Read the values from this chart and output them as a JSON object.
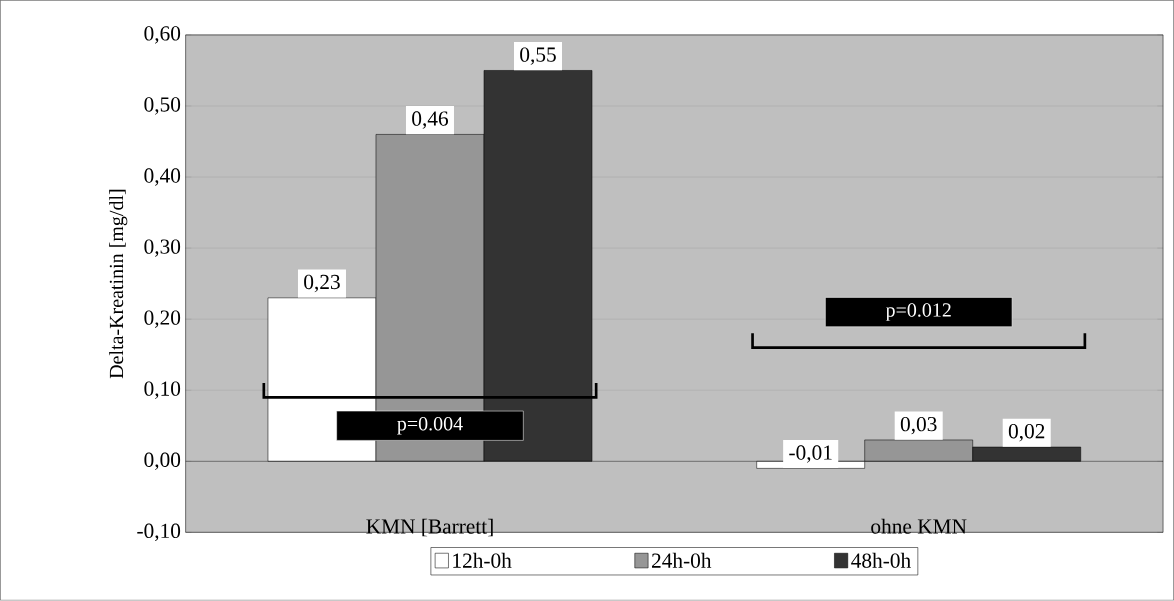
{
  "chart_data": {
    "type": "bar",
    "ylabel": "Delta-Kreatinin [mg/dl]",
    "categories": [
      "KMN [Barrett]",
      "ohne KMN"
    ],
    "series": [
      {
        "name": "12h-0h",
        "color": "#ffffff",
        "values": [
          0.23,
          -0.01
        ],
        "value_labels": [
          "0,23",
          "-0,01"
        ]
      },
      {
        "name": "24h-0h",
        "color": "#969696",
        "values": [
          0.46,
          0.03
        ],
        "value_labels": [
          "0,46",
          "0,03"
        ]
      },
      {
        "name": "48h-0h",
        "color": "#333333",
        "values": [
          0.55,
          0.02
        ],
        "value_labels": [
          "0,55",
          "0,02"
        ]
      }
    ],
    "ylim": [
      -0.1,
      0.6
    ],
    "yticks": [
      {
        "value": -0.1,
        "label": "-0,10"
      },
      {
        "value": 0,
        "label": "0,00"
      },
      {
        "value": 0.1,
        "label": "0,10"
      },
      {
        "value": 0.2,
        "label": "0,20"
      },
      {
        "value": 0.3,
        "label": "0,30"
      },
      {
        "value": 0.4,
        "label": "0,40"
      },
      {
        "value": 0.5,
        "label": "0,50"
      },
      {
        "value": 0.6,
        "label": "0,60"
      }
    ],
    "grid": "y",
    "legend": "bottom",
    "annotations": [
      "p=0.004",
      "p=0.012"
    ]
  }
}
